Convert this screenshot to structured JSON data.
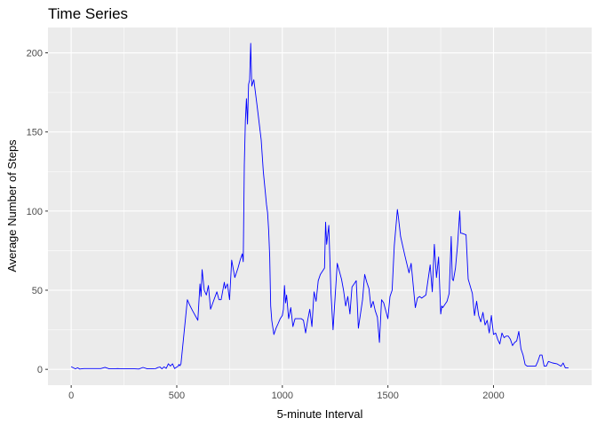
{
  "chart_data": {
    "type": "line",
    "title": "Time Series",
    "xlabel": "5-minute Interval",
    "ylabel": "Average Number of Steps",
    "xlim": [
      -110,
      2465
    ],
    "ylim": [
      -10,
      216
    ],
    "xticks": [
      0,
      500,
      1000,
      1500,
      2000
    ],
    "yticks": [
      0,
      50,
      100,
      150,
      200
    ],
    "grid": true,
    "legend": "none",
    "colors": {
      "line": "#0000ff",
      "panel": "#ebebeb",
      "grid": "#ffffff"
    },
    "series": [
      {
        "x": [
          0,
          20,
          30,
          40,
          60,
          80,
          100,
          120,
          140,
          160,
          180,
          200,
          220,
          240,
          260,
          280,
          300,
          320,
          340,
          360,
          380,
          400,
          410,
          420,
          430,
          440,
          450,
          460,
          470,
          480,
          490,
          500,
          505,
          510,
          515,
          520,
          530,
          550,
          560,
          575,
          600,
          610,
          615,
          620,
          630,
          640,
          650,
          660,
          690,
          700,
          710,
          725,
          730,
          740,
          750,
          760,
          775,
          790,
          800,
          810,
          815,
          820,
          825,
          830,
          835,
          840,
          845,
          850,
          855,
          865,
          880,
          900,
          910,
          920,
          925,
          930,
          935,
          940,
          945,
          950,
          960,
          970,
          980,
          990,
          1000,
          1005,
          1010,
          1015,
          1020,
          1030,
          1040,
          1050,
          1060,
          1070,
          1090,
          1100,
          1110,
          1120,
          1130,
          1140,
          1150,
          1160,
          1170,
          1180,
          1200,
          1205,
          1210,
          1220,
          1230,
          1240,
          1260,
          1280,
          1290,
          1300,
          1310,
          1320,
          1330,
          1340,
          1350,
          1360,
          1380,
          1390,
          1400,
          1410,
          1420,
          1430,
          1440,
          1450,
          1460,
          1470,
          1480,
          1500,
          1510,
          1520,
          1530,
          1545,
          1550,
          1560,
          1580,
          1600,
          1610,
          1630,
          1640,
          1650,
          1660,
          1680,
          1700,
          1710,
          1720,
          1730,
          1740,
          1750,
          1755,
          1760,
          1780,
          1790,
          1800,
          1805,
          1810,
          1820,
          1830,
          1840,
          1845,
          1850,
          1870,
          1880,
          1900,
          1910,
          1920,
          1930,
          1940,
          1950,
          1960,
          1970,
          1980,
          1990,
          2000,
          2010,
          2020,
          2030,
          2040,
          2050,
          2060,
          2070,
          2080,
          2090,
          2100,
          2110,
          2120,
          2130,
          2140,
          2150,
          2160,
          2170,
          2200,
          2210,
          2220,
          2230,
          2240,
          2250,
          2260,
          2280,
          2300,
          2320,
          2330,
          2340,
          2355
        ],
        "y": [
          1.7,
          0.3,
          1,
          0.2,
          0.5,
          0.5,
          0.5,
          0.5,
          0.5,
          1.3,
          0.3,
          0.3,
          0.5,
          0.3,
          0.3,
          0.3,
          0.3,
          0.2,
          1.2,
          0.3,
          0.3,
          0.5,
          1.1,
          1.5,
          0.3,
          1.6,
          0.6,
          3.5,
          2.1,
          3.5,
          0.5,
          1.5,
          1.8,
          3.1,
          2.3,
          3.5,
          17,
          44,
          41,
          37,
          31,
          54,
          46,
          63,
          50,
          47,
          53,
          38,
          49,
          44,
          44,
          55,
          51,
          54,
          44,
          69,
          58,
          64,
          69,
          73,
          68,
          129,
          157,
          171,
          155,
          180,
          183,
          206,
          179,
          183,
          167,
          145,
          125,
          111,
          104,
          99,
          88,
          71,
          40,
          31,
          22,
          26,
          29,
          32,
          34,
          38,
          53,
          42,
          47,
          32,
          39,
          27,
          32,
          32,
          32,
          31,
          23,
          31,
          38,
          27,
          49,
          43,
          56,
          60,
          64,
          93,
          79,
          91,
          49,
          25,
          67,
          57,
          50,
          40,
          46,
          35,
          52,
          54,
          56,
          26,
          44,
          60,
          55,
          51,
          39,
          43,
          37,
          33,
          17,
          44,
          42,
          32,
          46,
          50,
          78,
          101,
          96,
          84,
          72,
          61,
          67,
          39,
          45,
          46,
          45,
          47,
          66,
          49,
          79,
          58,
          71,
          35,
          40,
          39,
          43,
          48,
          84,
          57,
          56,
          64,
          79,
          100,
          86,
          86,
          85,
          57,
          48,
          34,
          43,
          34,
          30,
          36,
          28,
          31,
          23,
          34,
          22,
          23,
          19,
          16,
          23,
          20,
          21,
          21,
          19,
          15,
          17,
          18,
          24,
          13,
          9,
          3,
          2,
          2,
          2,
          5,
          9,
          9,
          2,
          2,
          5,
          4,
          3.5,
          2,
          4,
          1,
          1
        ]
      }
    ]
  }
}
